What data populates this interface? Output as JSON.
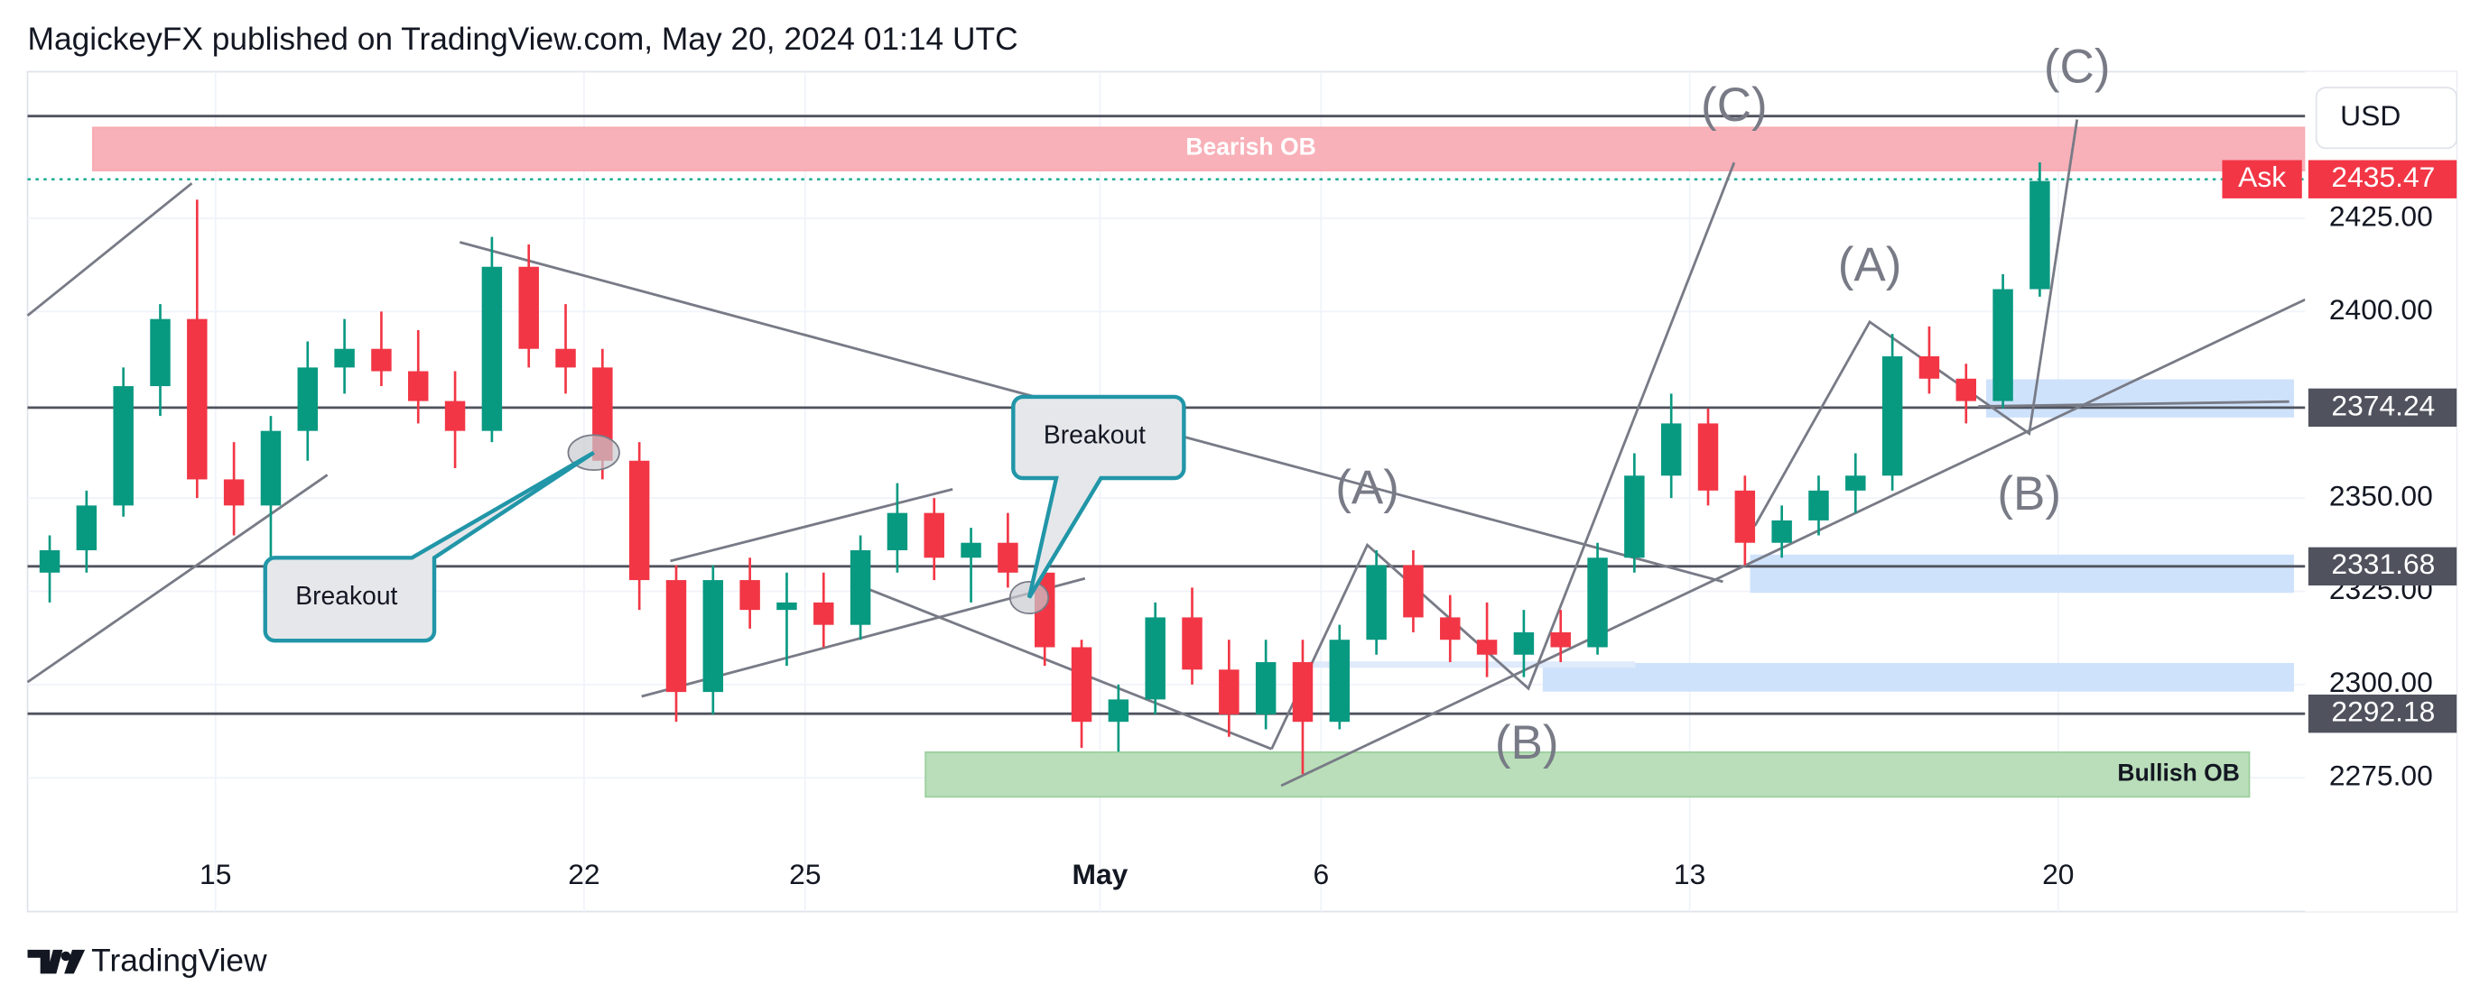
{
  "header": "MagickeyFX published on TradingView.com, May 20, 2024 01:14 UTC",
  "brand": "TradingView",
  "currency": "USD",
  "chart_data": {
    "type": "candlestick",
    "x": [
      -2.25,
      -1.75,
      -1.25,
      -0.75,
      -0.25,
      0.25,
      0.75,
      1.25,
      1.75,
      2.25,
      2.75,
      3.25,
      3.75,
      4.25,
      4.75,
      5.25,
      5.75,
      6.25,
      6.75,
      7.25,
      7.75,
      8.25,
      8.75,
      9.25,
      9.75,
      10.25,
      10.75,
      11.25,
      11.75,
      12.25,
      12.75,
      13.25,
      13.75,
      14.25,
      14.75,
      15.25,
      15.75,
      16.25,
      16.75,
      17.25,
      17.75,
      18.25,
      18.75,
      19.25,
      19.75,
      20.25,
      20.75,
      21.25,
      21.75,
      22.25,
      22.75,
      23.25,
      23.75,
      24.25,
      24.75
    ],
    "open": [
      2330,
      2336,
      2348,
      2380,
      2398,
      2355,
      2348,
      2368,
      2385,
      2390,
      2384,
      2376,
      2368,
      2412,
      2390,
      2385,
      2360,
      2328,
      2298,
      2328,
      2320,
      2322,
      2316,
      2336,
      2346,
      2334,
      2338,
      2330,
      2310,
      2290,
      2296,
      2318,
      2304,
      2292,
      2306,
      2290,
      2312,
      2332,
      2318,
      2312,
      2308,
      2314,
      2310,
      2334,
      2356,
      2370,
      2352,
      2338,
      2344,
      2352,
      2356,
      2388,
      2382,
      2376,
      2406
    ],
    "high": [
      2340,
      2352,
      2385,
      2402,
      2430,
      2365,
      2372,
      2392,
      2398,
      2400,
      2395,
      2384,
      2420,
      2418,
      2402,
      2390,
      2365,
      2332,
      2332,
      2334,
      2330,
      2330,
      2340,
      2354,
      2350,
      2342,
      2346,
      2334,
      2312,
      2300,
      2322,
      2326,
      2312,
      2312,
      2312,
      2316,
      2336,
      2336,
      2324,
      2322,
      2320,
      2320,
      2338,
      2362,
      2378,
      2374,
      2356,
      2348,
      2356,
      2362,
      2394,
      2396,
      2386,
      2410,
      2440
    ],
    "low": [
      2322,
      2330,
      2345,
      2372,
      2350,
      2340,
      2322,
      2360,
      2378,
      2380,
      2370,
      2358,
      2365,
      2385,
      2378,
      2355,
      2320,
      2290,
      2292,
      2315,
      2305,
      2310,
      2312,
      2330,
      2328,
      2322,
      2326,
      2305,
      2283,
      2282,
      2292,
      2300,
      2286,
      2288,
      2276,
      2288,
      2308,
      2314,
      2306,
      2302,
      2302,
      2306,
      2308,
      2330,
      2350,
      2348,
      2332,
      2334,
      2340,
      2346,
      2352,
      2378,
      2370,
      2374,
      2404
    ],
    "close": [
      2336,
      2348,
      2380,
      2398,
      2355,
      2348,
      2368,
      2385,
      2390,
      2384,
      2376,
      2368,
      2412,
      2390,
      2385,
      2360,
      2328,
      2298,
      2328,
      2320,
      2322,
      2316,
      2336,
      2346,
      2334,
      2338,
      2330,
      2310,
      2290,
      2296,
      2318,
      2304,
      2292,
      2306,
      2290,
      2312,
      2332,
      2318,
      2312,
      2308,
      2314,
      2310,
      2334,
      2356,
      2370,
      2352,
      2338,
      2344,
      2352,
      2356,
      2388,
      2382,
      2376,
      2406,
      2435
    ],
    "up_color": "#089981",
    "down_color": "#f23645",
    "xlim": [
      -2.55,
      28.35
    ],
    "ylim": [
      2252.8,
      2464.3
    ],
    "xticks": [
      {
        "value": 0,
        "label": "15"
      },
      {
        "value": 5,
        "label": "22"
      },
      {
        "value": 8,
        "label": "25"
      },
      {
        "value": 12,
        "label": "May"
      },
      {
        "value": 15,
        "label": "6"
      },
      {
        "value": 20,
        "label": "13"
      },
      {
        "value": 25,
        "label": "20"
      }
    ],
    "yticks": [
      {
        "value": 2275,
        "label": "2275.00"
      },
      {
        "value": 2300,
        "label": "2300.00"
      },
      {
        "value": 2325,
        "label": "2325.00"
      },
      {
        "value": 2350,
        "label": "2350.00"
      },
      {
        "value": 2400,
        "label": "2400.00"
      },
      {
        "value": 2425,
        "label": "2425.00"
      }
    ],
    "grid": true,
    "price_lines": [
      2374.24,
      2331.68,
      2292.18
    ],
    "plain_lines": [
      2452.4
    ],
    "ask": {
      "label": "Ask",
      "value": 2435.47
    },
    "annotations": {
      "bearish_ob": "Bearish OB",
      "bullish_ob": "Bullish OB"
    },
    "callouts": [
      "Breakout",
      "Breakout"
    ],
    "wave_labels": [
      "(A)",
      "(B)",
      "(C)",
      "(A)",
      "(B)",
      "(C)"
    ]
  }
}
